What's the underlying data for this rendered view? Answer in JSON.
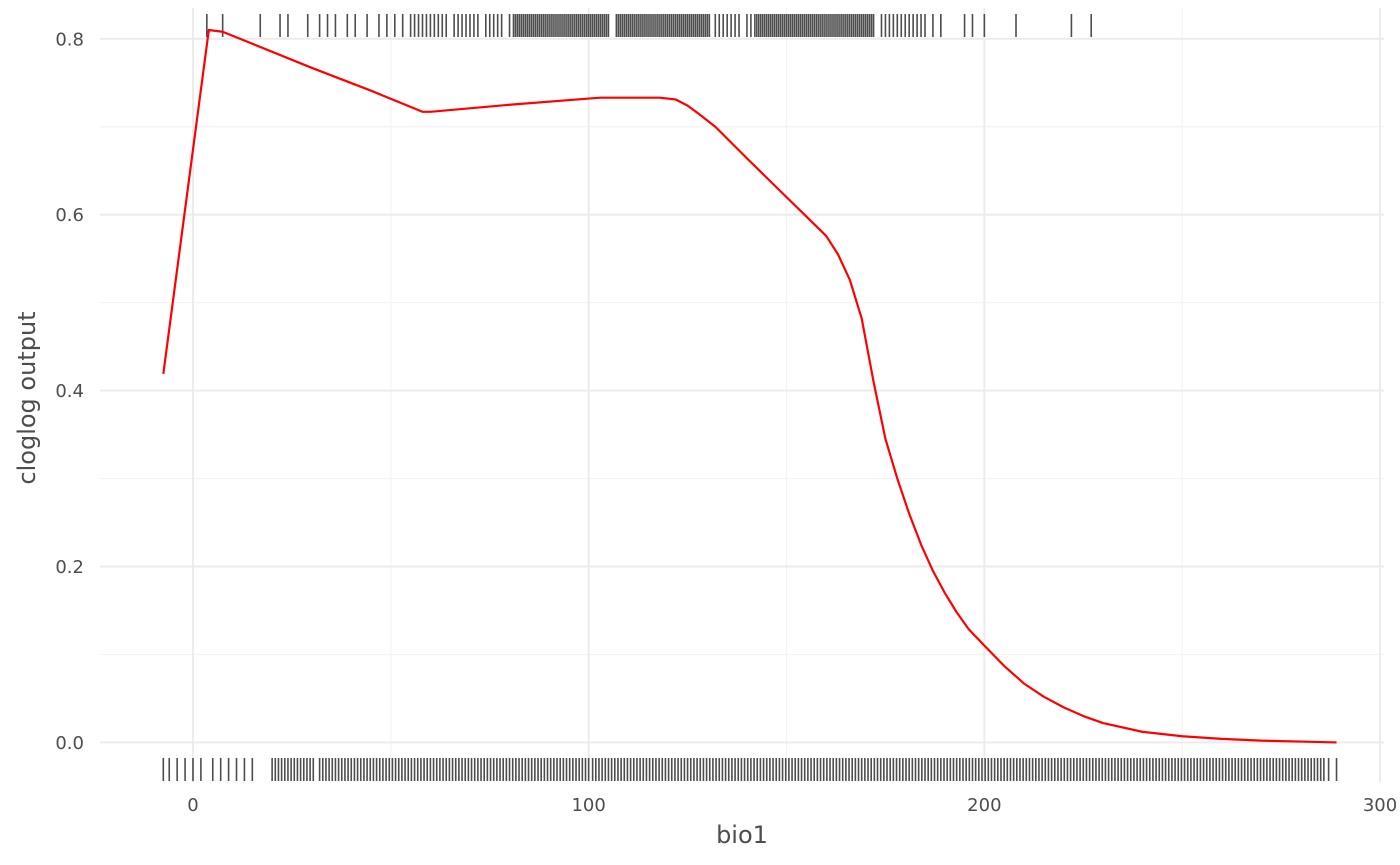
{
  "chart_data": {
    "type": "line",
    "title": "",
    "xlabel": "bio1",
    "ylabel": "cloglog output",
    "xlim": [
      -23.5,
      301
    ],
    "ylim": [
      -0.045,
      0.835
    ],
    "x_ticks": [
      0,
      100,
      200,
      300
    ],
    "x_tick_labels": [
      "0",
      "100",
      "200",
      "300"
    ],
    "y_ticks": [
      0.0,
      0.2,
      0.4,
      0.6,
      0.8
    ],
    "y_tick_labels": [
      "0.0",
      "0.2",
      "0.4",
      "0.6",
      "0.8"
    ],
    "grid": true,
    "line_color": "#ff0000",
    "rug_color": "#4d4d4d",
    "series": [
      {
        "x": [
          -7.5,
          4,
          7.5,
          30,
          45,
          58,
          60,
          80,
          100,
          103,
          118,
          122,
          125,
          128,
          132,
          140,
          150,
          155,
          160,
          163,
          166,
          169,
          172,
          175,
          178,
          181,
          184,
          187,
          190,
          193,
          196,
          200,
          205,
          210,
          215,
          220,
          225,
          230,
          240,
          250,
          260,
          270,
          280,
          289
        ],
        "y": [
          0.419,
          0.81,
          0.808,
          0.767,
          0.741,
          0.717,
          0.717,
          0.725,
          0.732,
          0.733,
          0.733,
          0.731,
          0.724,
          0.714,
          0.7,
          0.664,
          0.62,
          0.598,
          0.576,
          0.555,
          0.526,
          0.482,
          0.41,
          0.345,
          0.3,
          0.26,
          0.225,
          0.195,
          0.17,
          0.148,
          0.129,
          0.11,
          0.087,
          0.067,
          0.052,
          0.04,
          0.03,
          0.022,
          0.012,
          0.007,
          0.004,
          0.002,
          0.001,
          0.0
        ]
      }
    ],
    "rug_top": [
      3.5,
      7.5,
      17,
      22,
      24,
      29,
      32,
      34,
      36,
      39,
      41,
      44,
      47,
      49,
      51,
      53,
      55,
      56,
      57,
      58,
      59,
      60,
      61,
      62,
      63,
      64,
      66,
      67,
      68,
      69,
      70,
      71,
      72,
      74,
      75,
      76,
      77,
      78,
      80,
      81,
      81.5,
      82,
      82.5,
      83,
      83.5,
      84,
      84.5,
      85,
      85.5,
      86,
      86.5,
      87,
      87.5,
      88,
      88.5,
      89,
      89.5,
      90,
      90.5,
      91,
      91.5,
      92,
      92.5,
      93,
      93.5,
      94,
      94.5,
      95,
      95.5,
      96,
      96.5,
      97,
      97.5,
      98,
      98.5,
      99,
      99.5,
      100,
      100.5,
      101,
      101.5,
      102,
      102.5,
      103,
      103.5,
      104,
      104.5,
      105,
      107,
      107.5,
      108,
      108.5,
      109,
      109.5,
      110,
      110.5,
      111,
      111.5,
      112,
      112.5,
      113,
      113.5,
      114,
      114.5,
      115,
      115.5,
      116,
      116.5,
      117,
      117.5,
      118,
      118.5,
      119,
      119.5,
      120,
      120.5,
      121,
      121.5,
      122,
      122.5,
      123,
      123.5,
      124,
      124.5,
      125,
      125.5,
      126,
      126.5,
      127,
      127.5,
      128,
      128.5,
      129,
      129.5,
      130,
      130.5,
      132,
      133,
      134,
      135,
      136,
      137,
      138,
      140,
      141,
      142,
      142.5,
      143,
      143.5,
      144,
      144.5,
      145,
      145.5,
      146,
      146.5,
      147,
      147.5,
      148,
      148.5,
      149,
      149.5,
      150,
      150.5,
      151,
      151.5,
      152,
      152.5,
      153,
      153.5,
      154,
      154.5,
      155,
      155.5,
      156,
      156.5,
      157,
      157.5,
      158,
      158.5,
      159,
      159.5,
      160,
      160.5,
      161,
      161.5,
      162,
      162.5,
      163,
      163.5,
      164,
      164.5,
      165,
      165.5,
      166,
      166.5,
      167,
      167.5,
      168,
      168.5,
      169,
      169.5,
      170,
      170.5,
      171,
      171.5,
      172,
      174,
      175,
      176,
      177,
      178,
      179,
      180,
      181,
      182,
      183,
      184,
      185,
      187,
      189,
      195,
      197,
      200,
      208,
      222,
      227
    ],
    "rug_bottom_segments": [
      [
        -7.5,
        -7.5
      ],
      [
        -6,
        -6
      ],
      [
        -4,
        -4
      ],
      [
        -2,
        -2
      ],
      [
        0,
        0
      ],
      [
        2,
        2
      ],
      [
        5,
        5
      ],
      [
        7,
        7
      ],
      [
        9,
        9
      ],
      [
        11,
        11
      ],
      [
        13,
        13
      ],
      [
        15,
        15
      ],
      [
        20,
        31
      ],
      [
        32,
        100
      ],
      [
        101,
        286
      ],
      [
        287,
        287
      ],
      [
        289,
        289
      ]
    ],
    "rug_bottom_step": 0.8
  }
}
